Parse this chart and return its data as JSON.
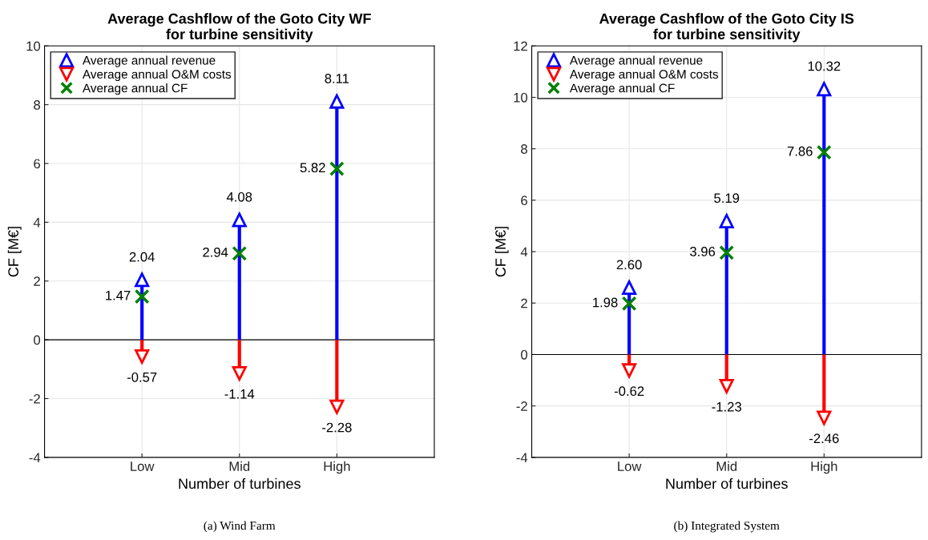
{
  "chart_data": [
    {
      "type": "lollipop",
      "title": "Average Cashflow of the Goto City WF\nfor turbine sensitivity",
      "xlabel": "Number of turbines",
      "ylabel": "CF [M€]",
      "categories": [
        "Low",
        "Mid",
        "High"
      ],
      "ylim": [
        -4,
        10
      ],
      "yticks": [
        -4,
        -2,
        0,
        2,
        4,
        6,
        8,
        10
      ],
      "grid": true,
      "legend": "top left",
      "annotations": [
        "(a) Wind Farm"
      ],
      "ref_lines": [
        {
          "axis": "y",
          "value": 0,
          "color": "#000000"
        }
      ],
      "series": [
        {
          "name": "Average annual revenue",
          "type": "lollipop",
          "color": "#0000ff",
          "marker": "triangle",
          "values": [
            2.04,
            4.08,
            8.11
          ],
          "value_labels": [
            "2.04",
            "4.08",
            "8.11"
          ]
        },
        {
          "name": "Average annual O&M costs",
          "type": "lollipop",
          "color": "#ff0000",
          "marker": "triangle",
          "values": [
            -0.57,
            -1.14,
            -2.28
          ],
          "value_labels": [
            "-0.57",
            "-1.14",
            "-2.28"
          ]
        },
        {
          "name": "Average annual CF",
          "type": "scatter",
          "color": "#008000",
          "marker": "cross",
          "values": [
            1.47,
            2.94,
            5.82
          ],
          "value_labels": [
            "1.47",
            "2.94",
            "5.82"
          ]
        }
      ]
    },
    {
      "type": "lollipop",
      "title": "Average Cashflow of the Goto City IS\nfor turbine sensitivity",
      "xlabel": "Number of turbines",
      "ylabel": "CF [M€]",
      "categories": [
        "Low",
        "Mid",
        "High"
      ],
      "ylim": [
        -4,
        12
      ],
      "yticks": [
        -4,
        -2,
        0,
        2,
        4,
        6,
        8,
        10,
        12
      ],
      "grid": true,
      "legend": "top left",
      "annotations": [
        "(b) Integrated System"
      ],
      "ref_lines": [
        {
          "axis": "y",
          "value": 0,
          "color": "#000000"
        }
      ],
      "series": [
        {
          "name": "Average annual revenue",
          "type": "lollipop",
          "color": "#0000ff",
          "marker": "triangle",
          "values": [
            2.6,
            5.19,
            10.32
          ],
          "value_labels": [
            "2.60",
            "5.19",
            "10.32"
          ]
        },
        {
          "name": "Average annual O&M costs",
          "type": "lollipop",
          "color": "#ff0000",
          "marker": "triangle",
          "values": [
            -0.62,
            -1.23,
            -2.46
          ],
          "value_labels": [
            "-0.62",
            "-1.23",
            "-2.46"
          ]
        },
        {
          "name": "Average annual CF",
          "type": "scatter",
          "color": "#008000",
          "marker": "cross",
          "values": [
            1.98,
            3.96,
            7.86
          ],
          "value_labels": [
            "1.98",
            "3.96",
            "7.86"
          ]
        }
      ]
    }
  ]
}
